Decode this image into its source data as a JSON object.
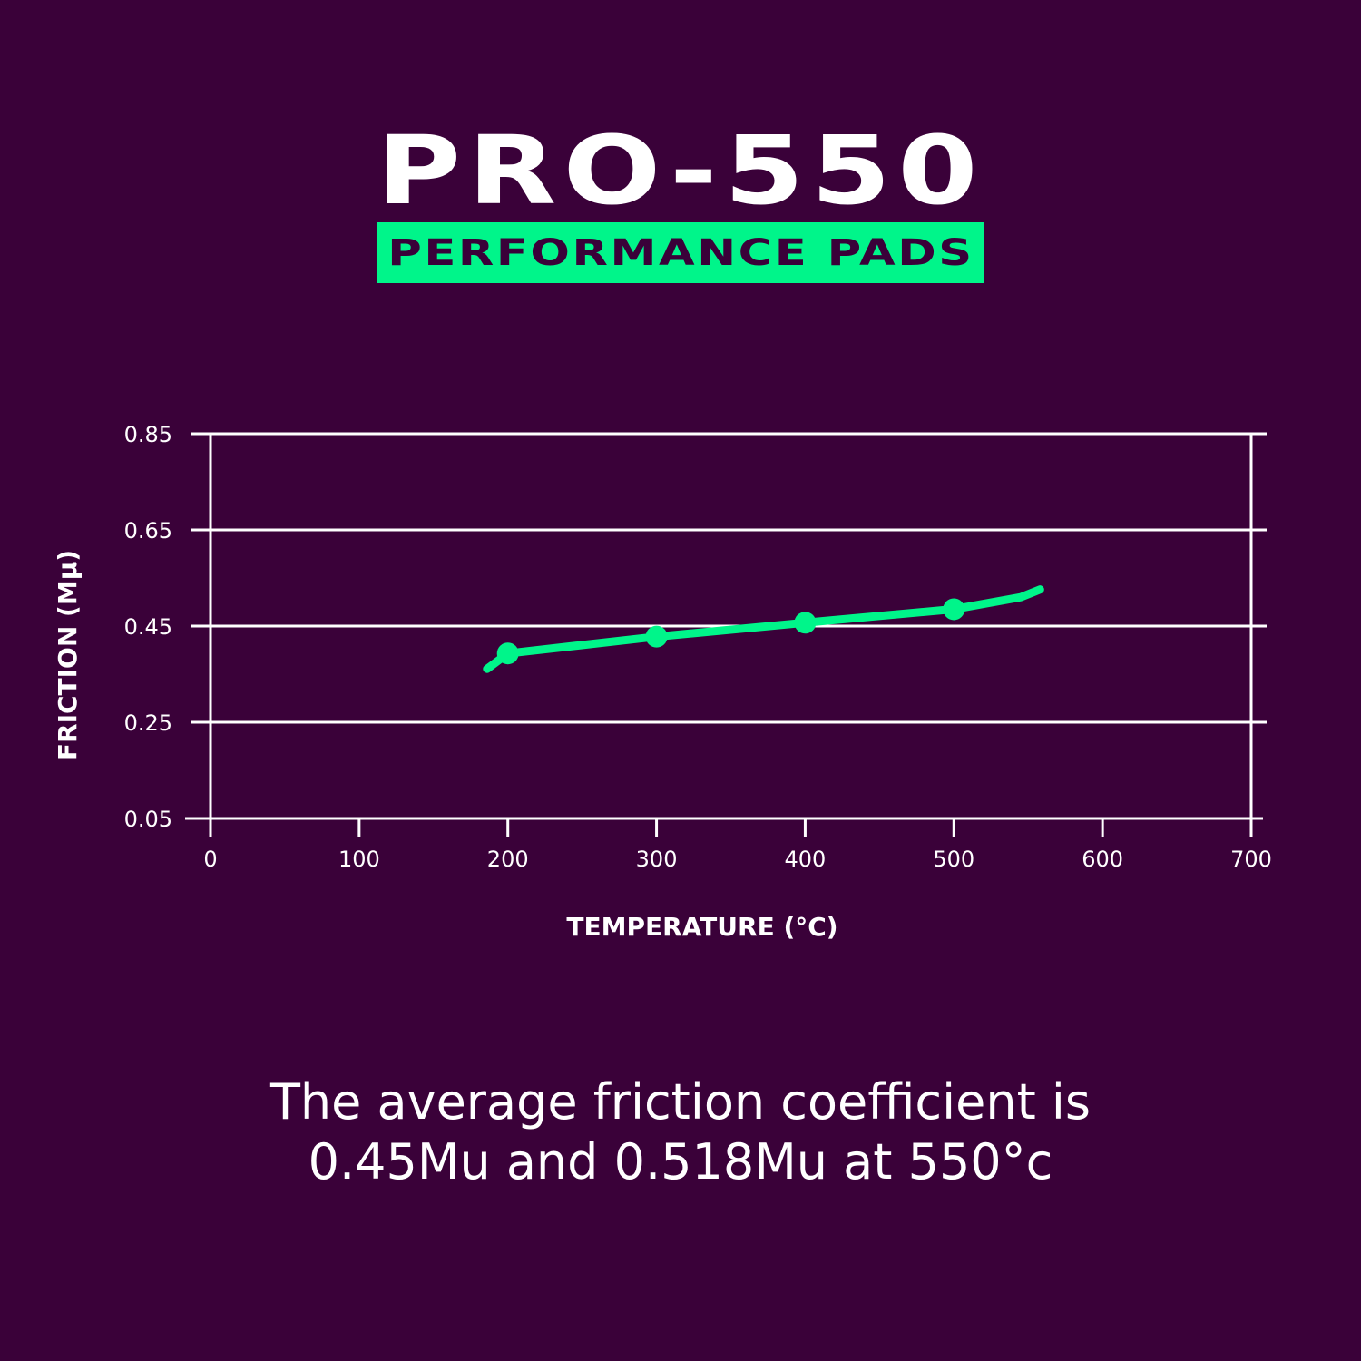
{
  "header": {
    "title": "PRO-550",
    "subtitle": "PERFORMANCE PADS"
  },
  "colors": {
    "background": "#3a0139",
    "accent": "#00f58a",
    "axis": "#ffffff"
  },
  "chart_data": {
    "type": "line",
    "title": "",
    "xlabel": "TEMPERATURE (°C)",
    "ylabel": "FRICTION (Mμ)",
    "xlim": [
      0,
      700
    ],
    "ylim": [
      0.05,
      0.85
    ],
    "xticks": [
      "0",
      "100",
      "200",
      "300",
      "400",
      "500",
      "600",
      "700"
    ],
    "yticks": [
      "0.05",
      "0.25",
      "0.45",
      "0.65",
      "0.85"
    ],
    "grid": "horizontal",
    "series": [
      {
        "x": [
          186,
          200,
          300,
          400,
          500,
          545,
          558
        ],
        "y": [
          0.361,
          0.393,
          0.428,
          0.457,
          0.485,
          0.51,
          0.526
        ],
        "markers_x": [
          200,
          300,
          400,
          500
        ],
        "markers_y": [
          0.393,
          0.428,
          0.457,
          0.485
        ]
      }
    ]
  },
  "caption": {
    "line1": "The average friction coefficient is",
    "line2": "0.45Mu and 0.518Mu at 550°c"
  }
}
